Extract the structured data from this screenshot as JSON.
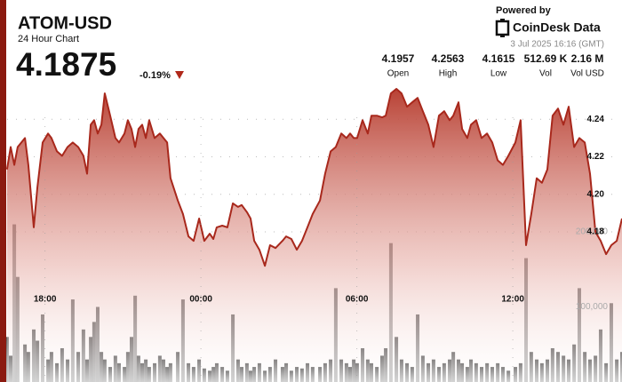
{
  "header": {
    "title": "ATOM-USD",
    "subtitle": "24 Hour Chart",
    "price": "4.1875",
    "change": "-0.19%"
  },
  "branding": {
    "powered_by": "Powered by",
    "brand": "CoinDesk Data"
  },
  "timestamp": "3 Jul 2025 16:16 (GMT)",
  "stats": [
    {
      "value": "4.1957",
      "label": "Open"
    },
    {
      "value": "4.2563",
      "label": "High"
    },
    {
      "value": "4.1615",
      "label": "Low"
    },
    {
      "value": "512.69 K",
      "label": "Vol"
    },
    {
      "value": "2.16 M",
      "label": "Vol USD"
    }
  ],
  "chart_data": {
    "type": "area",
    "x": [
      0.27,
      0.41,
      0.55,
      0.68,
      0.96,
      1.09,
      1.3,
      1.44,
      1.64,
      1.85,
      1.98,
      2.19,
      2.39,
      2.6,
      2.8,
      3.01,
      3.21,
      3.35,
      3.49,
      3.62,
      3.76,
      3.9,
      4.03,
      4.24,
      4.44,
      4.58,
      4.79,
      4.92,
      5.06,
      5.2,
      5.33,
      5.47,
      5.61,
      5.74,
      5.95,
      6.15,
      6.29,
      6.43,
      6.56,
      6.84,
      7.04,
      7.25,
      7.45,
      7.66,
      7.86,
      8.07,
      8.21,
      8.34,
      8.55,
      8.75,
      8.96,
      9.16,
      9.3,
      9.5,
      9.64,
      9.78,
      9.98,
      10.19,
      10.39,
      10.6,
      10.87,
      11.01,
      11.21,
      11.42,
      11.62,
      11.83,
      12.03,
      12.31,
      12.51,
      12.72,
      12.92,
      13.13,
      13.33,
      13.47,
      13.61,
      13.74,
      13.95,
      14.15,
      14.29,
      14.5,
      14.7,
      14.84,
      15.04,
      15.25,
      15.45,
      15.66,
      15.86,
      16.07,
      16.27,
      16.48,
      16.68,
      16.89,
      17.09,
      17.3,
      17.44,
      17.64,
      17.78,
      17.98,
      18.12,
      18.32,
      18.53,
      18.74,
      18.94,
      19.15,
      19.35,
      19.56,
      19.83,
      20.03,
      20.24,
      20.44,
      20.65,
      20.85,
      21.06,
      21.26,
      21.47,
      21.68,
      21.88,
      22.09,
      22.29,
      22.5,
      22.7,
      22.91,
      23.11,
      23.32,
      23.52,
      23.73,
      23.93
    ],
    "series": [
      {
        "color": "#a8281c",
        "values": [
          4.2133,
          4.2252,
          4.2157,
          4.2252,
          4.23,
          4.2157,
          4.1824,
          4.2038,
          4.2276,
          4.2324,
          4.23,
          4.2229,
          4.2205,
          4.2252,
          4.2276,
          4.2252,
          4.2205,
          4.211,
          4.2371,
          4.2395,
          4.2324,
          4.2371,
          4.2538,
          4.2419,
          4.23,
          4.2276,
          4.2324,
          4.2395,
          4.2348,
          4.2252,
          4.2348,
          4.2371,
          4.23,
          4.2395,
          4.23,
          4.2324,
          4.23,
          4.2276,
          4.2086,
          4.1967,
          4.1895,
          4.1776,
          4.1752,
          4.1871,
          4.1752,
          4.179,
          4.1762,
          4.1824,
          4.1833,
          4.1824,
          4.1952,
          4.1933,
          4.1943,
          4.1905,
          4.1871,
          4.1752,
          4.1705,
          4.1619,
          4.1729,
          4.1714,
          4.1752,
          4.1776,
          4.1762,
          4.1705,
          4.1752,
          4.1824,
          4.1895,
          4.1967,
          4.211,
          4.2229,
          4.2252,
          4.2324,
          4.23,
          4.2324,
          4.23,
          4.23,
          4.2395,
          4.2324,
          4.2419,
          4.2419,
          4.241,
          4.2419,
          4.2538,
          4.2562,
          4.2538,
          4.2467,
          4.249,
          4.2514,
          4.2443,
          4.2371,
          4.2252,
          4.2419,
          4.2443,
          4.2395,
          4.2419,
          4.249,
          4.2348,
          4.23,
          4.2371,
          4.2395,
          4.23,
          4.2324,
          4.2276,
          4.2181,
          4.2157,
          4.2205,
          4.2276,
          4.2395,
          4.1729,
          4.1895,
          4.2086,
          4.2062,
          4.2133,
          4.2419,
          4.2457,
          4.2371,
          4.2467,
          4.2252,
          4.23,
          4.2276,
          4.211,
          4.18,
          4.1752,
          4.1681,
          4.1729,
          4.1752,
          4.1871
        ]
      },
      {
        "type": "bar",
        "axis": "y2",
        "color": "#666666",
        "values": [
          60000,
          35000,
          210000,
          140000,
          50000,
          40000,
          70000,
          55000,
          90000,
          30000,
          40000,
          25000,
          45000,
          30000,
          110000,
          40000,
          70000,
          30000,
          60000,
          80000,
          100000,
          40000,
          30000,
          20000,
          35000,
          25000,
          20000,
          40000,
          60000,
          115000,
          35000,
          25000,
          30000,
          20000,
          25000,
          35000,
          30000,
          20000,
          25000,
          40000,
          110000,
          25000,
          20000,
          30000,
          18000,
          15000,
          20000,
          25000,
          20000,
          15000,
          90000,
          30000,
          20000,
          25000,
          15000,
          20000,
          25000,
          15000,
          20000,
          30000,
          20000,
          25000,
          15000,
          20000,
          18000,
          25000,
          20000,
          20000,
          25000,
          30000,
          125000,
          30000,
          25000,
          20000,
          30000,
          25000,
          45000,
          30000,
          25000,
          20000,
          35000,
          45000,
          185000,
          60000,
          30000,
          25000,
          20000,
          90000,
          35000,
          25000,
          30000,
          20000,
          25000,
          30000,
          40000,
          30000,
          25000,
          20000,
          30000,
          25000,
          20000,
          25000,
          20000,
          25000,
          20000,
          15000,
          20000,
          25000,
          165000,
          40000,
          30000,
          25000,
          30000,
          45000,
          40000,
          35000,
          30000,
          50000,
          125000,
          40000,
          30000,
          35000,
          70000,
          25000,
          105000,
          30000,
          40000
        ]
      }
    ],
    "xlim": [
      0,
      24
    ],
    "xticks": [
      {
        "value": 1.73,
        "label": "18:00"
      },
      {
        "value": 7.73,
        "label": "00:00"
      },
      {
        "value": 13.73,
        "label": "06:00"
      },
      {
        "value": 19.73,
        "label": "12:00"
      }
    ],
    "ylim": [
      4.1,
      4.26
    ],
    "yticks": [
      4.18,
      {
        "value": 4.2,
        "label": "4.20"
      },
      4.22,
      4.24
    ],
    "y2lim": [
      0,
      400000
    ],
    "y2ticks": [
      {
        "value": 100000,
        "label": "100,000"
      },
      {
        "value": 200000,
        "label": "200,000"
      }
    ],
    "grid": true
  }
}
